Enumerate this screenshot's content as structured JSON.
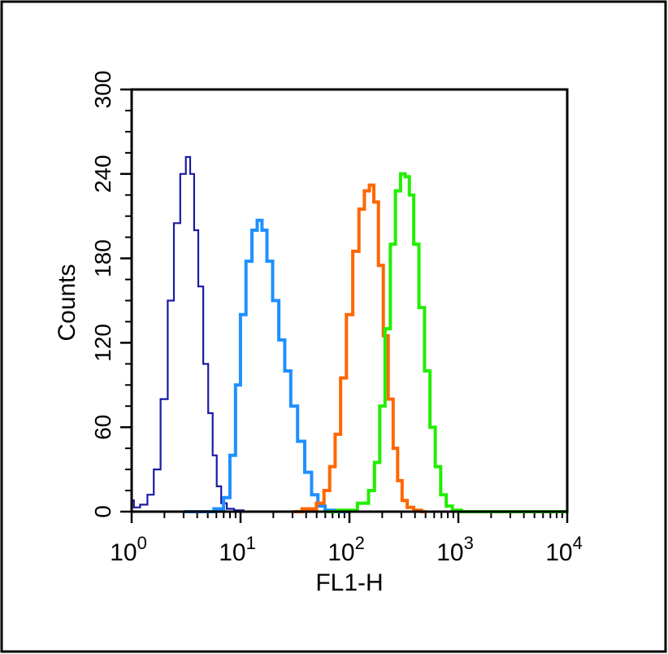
{
  "chart_data": {
    "type": "line",
    "xlabel": "FL1-H",
    "ylabel": "Counts",
    "xscale": "log",
    "xlim": [
      1,
      10000
    ],
    "ylim": [
      0,
      300
    ],
    "xticks": [
      {
        "value": 1,
        "base": "10",
        "exp": "0"
      },
      {
        "value": 10,
        "base": "10",
        "exp": "1"
      },
      {
        "value": 100,
        "base": "10",
        "exp": "2"
      },
      {
        "value": 1000,
        "base": "10",
        "exp": "3"
      },
      {
        "value": 10000,
        "base": "10",
        "exp": "4"
      }
    ],
    "yticks": [
      0,
      60,
      120,
      180,
      240,
      300
    ],
    "series": [
      {
        "color": "#1a1aa6",
        "stroke_width": 2.2,
        "x": [
          1,
          1.1,
          1.3,
          1.5,
          1.7,
          2.0,
          2.3,
          2.6,
          3.0,
          3.3,
          3.6,
          3.9,
          4.3,
          4.8,
          5.3,
          5.8,
          6.3,
          7.0,
          8.0,
          9.5,
          12,
          15,
          20
        ],
        "values": [
          8,
          3,
          5,
          12,
          30,
          80,
          150,
          205,
          240,
          252,
          240,
          200,
          160,
          105,
          70,
          40,
          18,
          6,
          2,
          1,
          0,
          0,
          0
        ]
      },
      {
        "color": "#1e90ff",
        "stroke_width": 4,
        "x": [
          3,
          5,
          6.5,
          7.5,
          8.5,
          9.5,
          10.5,
          12,
          13.5,
          15,
          16.5,
          18.5,
          21,
          24,
          27,
          31,
          36,
          42,
          48,
          55,
          65,
          80,
          100
        ],
        "values": [
          0,
          0,
          2,
          10,
          40,
          90,
          140,
          178,
          200,
          207,
          200,
          178,
          150,
          122,
          100,
          75,
          50,
          28,
          12,
          4,
          1,
          0,
          0
        ]
      },
      {
        "color": "#ff6600",
        "stroke_width": 4,
        "x": [
          30,
          45,
          55,
          62,
          70,
          78,
          88,
          100,
          115,
          130,
          145,
          160,
          175,
          195,
          215,
          240,
          265,
          290,
          320,
          360,
          420,
          500
        ],
        "values": [
          0,
          2,
          6,
          15,
          32,
          55,
          95,
          140,
          185,
          215,
          228,
          232,
          220,
          175,
          125,
          80,
          45,
          22,
          8,
          3,
          1,
          0
        ]
      },
      {
        "color": "#22ee00",
        "stroke_width": 4,
        "x": [
          60,
          100,
          140,
          160,
          180,
          200,
          225,
          250,
          280,
          310,
          340,
          370,
          410,
          460,
          520,
          580,
          650,
          730,
          820,
          950,
          1200,
          10000
        ],
        "values": [
          0,
          1,
          6,
          15,
          35,
          75,
          130,
          190,
          228,
          240,
          238,
          225,
          190,
          145,
          100,
          60,
          32,
          12,
          4,
          1,
          0,
          0
        ]
      }
    ]
  }
}
